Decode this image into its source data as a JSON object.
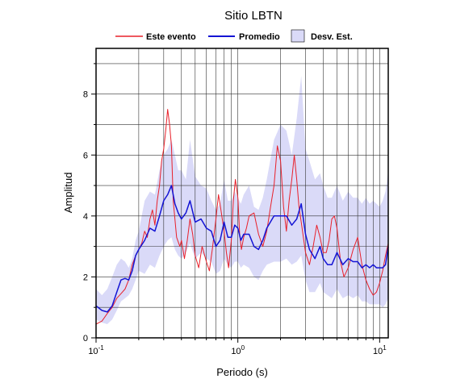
{
  "chart_data": {
    "type": "line",
    "title": "Sitio LBTN",
    "xlabel": "Periodo (s)",
    "ylabel": "Amplitud",
    "x_scale": "log",
    "xlim": [
      0.1,
      11.5
    ],
    "ylim": [
      0,
      9.5
    ],
    "grid": true,
    "legend_position": "top",
    "x_ticks": [
      {
        "value": 0.1,
        "base": "10",
        "exp": "-1"
      },
      {
        "value": 1,
        "base": "10",
        "exp": "0"
      },
      {
        "value": 10,
        "base": "10",
        "exp": "1"
      }
    ],
    "y_ticks": [
      {
        "value": 0,
        "label": "0"
      },
      {
        "value": 2,
        "label": "2"
      },
      {
        "value": 4,
        "label": "4"
      },
      {
        "value": 6,
        "label": "6"
      },
      {
        "value": 8,
        "label": "8"
      }
    ],
    "legend": {
      "event_label": "Este evento",
      "mean_label": "Promedio",
      "std_label": "Desv. Est."
    },
    "colors": {
      "event": "#e8202a",
      "mean": "#1414d4",
      "std_fill": "#dadaf8"
    },
    "series": [
      {
        "name": "Este evento",
        "x": [
          0.1,
          0.105,
          0.11,
          0.12,
          0.13,
          0.14,
          0.15,
          0.16,
          0.17,
          0.18,
          0.19,
          0.2,
          0.21,
          0.22,
          0.23,
          0.24,
          0.25,
          0.26,
          0.27,
          0.28,
          0.29,
          0.3,
          0.31,
          0.32,
          0.33,
          0.34,
          0.35,
          0.37,
          0.39,
          0.4,
          0.42,
          0.44,
          0.46,
          0.48,
          0.5,
          0.53,
          0.56,
          0.6,
          0.63,
          0.66,
          0.7,
          0.73,
          0.76,
          0.8,
          0.83,
          0.86,
          0.9,
          0.93,
          0.96,
          1.0,
          1.03,
          1.06,
          1.1,
          1.15,
          1.2,
          1.3,
          1.4,
          1.5,
          1.6,
          1.7,
          1.8,
          1.9,
          2.0,
          2.1,
          2.2,
          2.3,
          2.4,
          2.5,
          2.6,
          2.7,
          2.8,
          3.0,
          3.2,
          3.4,
          3.6,
          3.8,
          4.0,
          4.2,
          4.4,
          4.6,
          4.8,
          5.0,
          5.3,
          5.6,
          6.0,
          6.5,
          7.0,
          7.5,
          8.0,
          8.5,
          9.0,
          9.5,
          10.0,
          10.5,
          11.0,
          11.5
        ],
        "values": [
          0.45,
          0.5,
          0.55,
          0.8,
          1.0,
          1.3,
          1.45,
          1.6,
          1.9,
          2.4,
          2.7,
          2.9,
          3.1,
          3.5,
          3.3,
          3.9,
          4.2,
          3.7,
          4.5,
          5.0,
          5.8,
          6.2,
          6.8,
          7.5,
          7.0,
          6.3,
          4.5,
          3.3,
          3.0,
          3.2,
          2.6,
          3.2,
          3.9,
          3.4,
          2.7,
          2.3,
          3.0,
          2.5,
          2.2,
          2.9,
          3.9,
          4.7,
          4.2,
          3.5,
          2.8,
          2.3,
          3.2,
          4.5,
          5.2,
          4.6,
          3.4,
          2.9,
          3.3,
          3.6,
          4.0,
          4.1,
          3.4,
          3.0,
          3.5,
          4.3,
          5.0,
          6.3,
          5.8,
          4.3,
          3.5,
          4.5,
          5.2,
          6.0,
          5.2,
          4.3,
          3.8,
          2.8,
          2.4,
          3.0,
          3.7,
          3.3,
          2.8,
          2.8,
          3.2,
          3.9,
          4.0,
          3.6,
          2.5,
          2.0,
          2.3,
          2.9,
          3.3,
          2.4,
          1.9,
          1.6,
          1.4,
          1.5,
          1.8,
          2.2,
          2.7,
          3.1
        ]
      },
      {
        "name": "Promedio",
        "x": [
          0.1,
          0.11,
          0.12,
          0.13,
          0.14,
          0.15,
          0.16,
          0.17,
          0.18,
          0.19,
          0.2,
          0.22,
          0.24,
          0.26,
          0.28,
          0.3,
          0.32,
          0.34,
          0.36,
          0.38,
          0.4,
          0.43,
          0.46,
          0.5,
          0.55,
          0.6,
          0.65,
          0.7,
          0.75,
          0.8,
          0.85,
          0.9,
          0.95,
          1.0,
          1.05,
          1.1,
          1.2,
          1.3,
          1.4,
          1.5,
          1.6,
          1.8,
          2.0,
          2.2,
          2.4,
          2.6,
          2.8,
          3.0,
          3.2,
          3.5,
          3.8,
          4.0,
          4.3,
          4.6,
          5.0,
          5.5,
          6.0,
          6.5,
          7.0,
          7.5,
          8.0,
          8.5,
          9.0,
          9.5,
          10.0,
          10.5,
          11.0,
          11.5
        ],
        "values": [
          1.05,
          0.9,
          0.85,
          1.05,
          1.5,
          1.9,
          1.95,
          1.9,
          2.2,
          2.7,
          2.9,
          3.2,
          3.6,
          3.5,
          4.0,
          4.5,
          4.7,
          5.0,
          4.4,
          4.1,
          3.9,
          4.1,
          4.5,
          3.8,
          3.9,
          3.6,
          3.5,
          3.0,
          3.2,
          3.8,
          3.3,
          3.3,
          3.7,
          3.6,
          3.2,
          3.4,
          3.4,
          3.0,
          2.9,
          3.2,
          3.6,
          4.0,
          4.0,
          4.0,
          3.7,
          3.9,
          4.4,
          3.4,
          2.9,
          2.6,
          3.0,
          2.6,
          2.4,
          2.4,
          2.8,
          2.4,
          2.6,
          2.5,
          2.5,
          2.3,
          2.4,
          2.3,
          2.4,
          2.3,
          2.3,
          2.3,
          2.4,
          3.0
        ]
      }
    ],
    "std_band": {
      "name": "Desv. Est.",
      "x": [
        0.1,
        0.11,
        0.12,
        0.13,
        0.14,
        0.15,
        0.16,
        0.17,
        0.18,
        0.19,
        0.2,
        0.22,
        0.24,
        0.26,
        0.28,
        0.3,
        0.32,
        0.34,
        0.36,
        0.38,
        0.4,
        0.43,
        0.46,
        0.5,
        0.55,
        0.6,
        0.65,
        0.7,
        0.75,
        0.8,
        0.85,
        0.9,
        0.95,
        1.0,
        1.05,
        1.1,
        1.2,
        1.3,
        1.4,
        1.5,
        1.6,
        1.8,
        2.0,
        2.2,
        2.4,
        2.6,
        2.8,
        3.0,
        3.2,
        3.5,
        3.8,
        4.0,
        4.3,
        4.6,
        5.0,
        5.5,
        6.0,
        6.5,
        7.0,
        7.5,
        8.0,
        8.5,
        9.0,
        9.5,
        10.0,
        10.5,
        11.0,
        11.5
      ],
      "upper": [
        1.6,
        1.4,
        1.6,
        2.0,
        2.4,
        2.6,
        2.5,
        2.3,
        2.6,
        3.2,
        3.5,
        4.5,
        4.8,
        4.7,
        5.5,
        6.0,
        6.2,
        6.5,
        6.0,
        5.5,
        5.5,
        5.2,
        6.5,
        5.3,
        5.0,
        4.9,
        4.5,
        4.2,
        4.4,
        5.2,
        4.5,
        4.5,
        4.8,
        4.6,
        4.4,
        4.7,
        5.0,
        4.3,
        4.2,
        4.6,
        5.2,
        6.5,
        7.0,
        6.8,
        6.0,
        7.2,
        8.6,
        6.2,
        5.8,
        5.2,
        5.4,
        5.0,
        4.6,
        4.6,
        5.0,
        4.5,
        4.8,
        4.6,
        4.6,
        4.4,
        4.6,
        4.4,
        4.5,
        4.4,
        4.3,
        4.5,
        4.8,
        5.5
      ],
      "lower": [
        0.6,
        0.5,
        0.45,
        0.6,
        0.9,
        1.2,
        1.3,
        1.4,
        1.6,
        1.9,
        2.2,
        2.1,
        2.4,
        2.3,
        2.7,
        3.0,
        3.2,
        3.3,
        2.9,
        2.7,
        2.6,
        2.8,
        3.1,
        2.6,
        2.8,
        2.6,
        2.5,
        2.1,
        2.2,
        2.6,
        2.4,
        2.3,
        2.5,
        2.5,
        2.3,
        2.4,
        2.3,
        2.0,
        1.9,
        2.2,
        2.4,
        2.5,
        2.5,
        2.6,
        2.4,
        2.5,
        2.7,
        1.9,
        1.5,
        1.5,
        1.8,
        1.5,
        1.4,
        1.3,
        1.6,
        1.3,
        1.4,
        1.3,
        1.4,
        1.2,
        1.2,
        1.1,
        1.1,
        1.1,
        1.1,
        1.0,
        1.1,
        1.3
      ]
    }
  }
}
